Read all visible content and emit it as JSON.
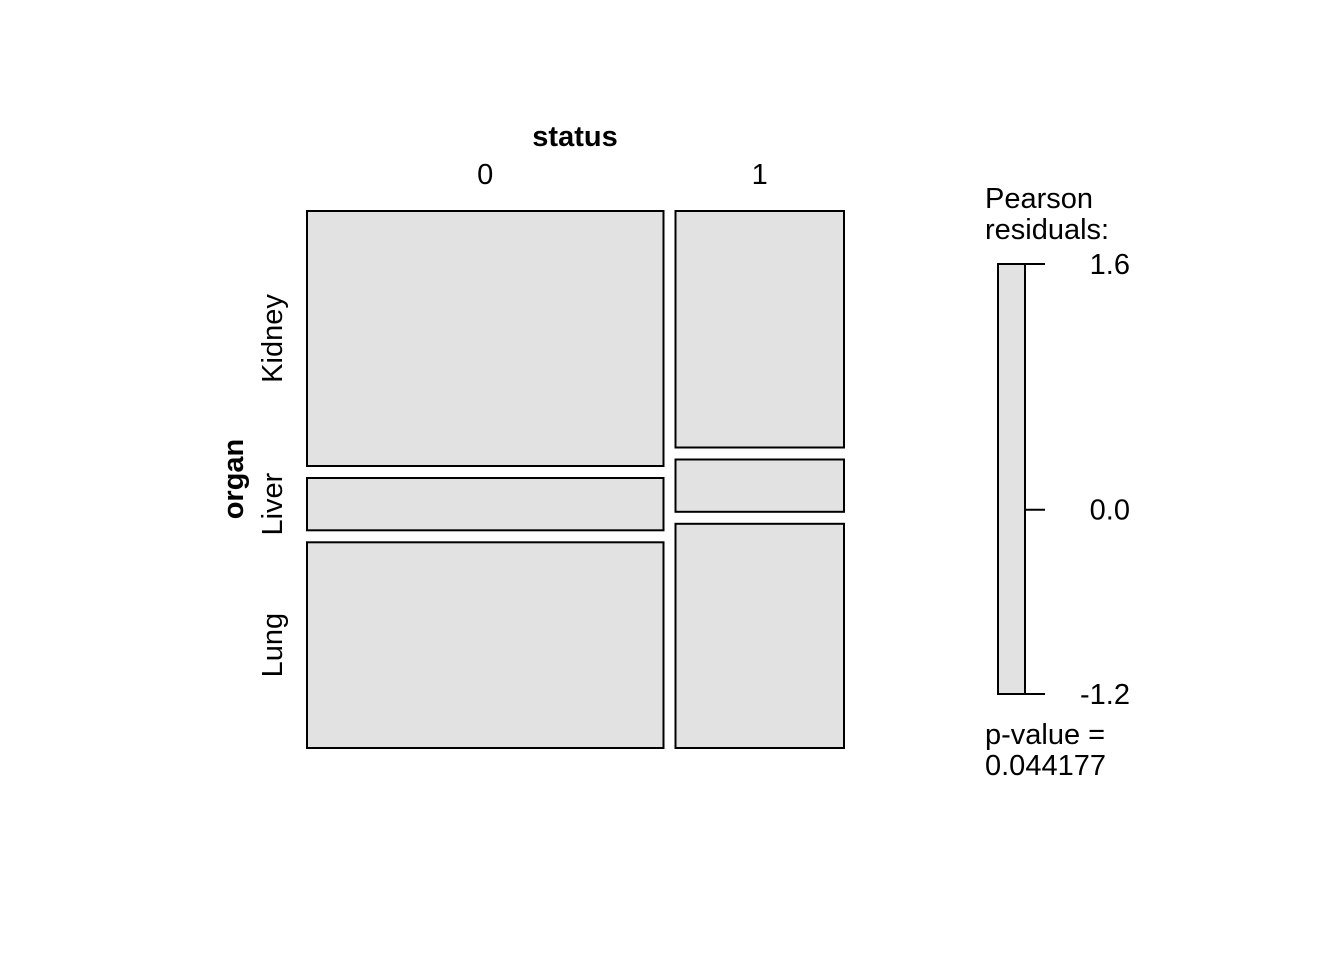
{
  "chart_data": {
    "type": "mosaic",
    "x_variable": "status",
    "y_variable": "organ",
    "x_levels": [
      "0",
      "1"
    ],
    "y_levels": [
      "Kidney",
      "Liver",
      "Lung"
    ],
    "column_fractions": [
      0.679,
      0.321
    ],
    "cell_fractions": {
      "0": [
        0.497,
        0.102,
        0.401
      ],
      "1": [
        0.461,
        0.102,
        0.437
      ]
    },
    "residuals_label": "Pearson\nresiduals:",
    "residual_ticks": [
      {
        "label": "1.6",
        "value": 1.6
      },
      {
        "label": "0.0",
        "value": 0.0
      },
      {
        "label": "-1.2",
        "value": -1.2
      }
    ],
    "residual_range": [
      -1.2,
      1.6
    ],
    "p_value_label": "p-value =",
    "p_value": "0.044177",
    "tile_fill": "#e2e2e2",
    "tile_stroke": "#000000"
  }
}
